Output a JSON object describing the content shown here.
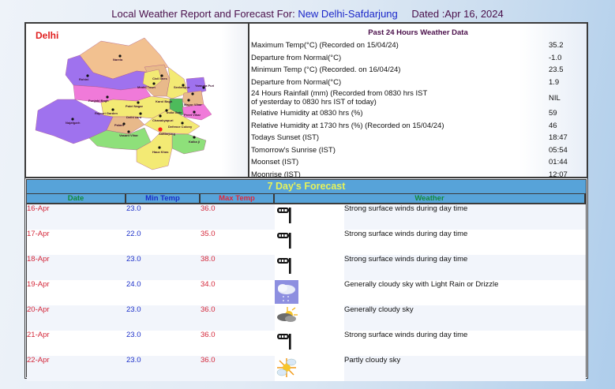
{
  "header": {
    "prefix": "Local Weather Report and Forecast For:",
    "location": "New Delhi-Safdarjung",
    "dated": "Dated :Apr 16, 2024"
  },
  "map": {
    "title": "Delhi",
    "localities": [
      "Narela",
      "Rohini",
      "Civil lines",
      "Model Town",
      "Seelampur",
      "Shahdara",
      "Yamuna Puri",
      "Punjabi Bagh",
      "Patel Nagar",
      "Karol Bagh",
      "India Gate",
      "Mayur Vihar",
      "Preet Vihar",
      "Rajouri Garden",
      "Delhi Cantt",
      "Chanakyapuri",
      "Najafgarh",
      "Palam",
      "Vasant Vihar",
      "Defence Colony",
      "Safdarjung",
      "Kalkaji",
      "Hauz Khas"
    ]
  },
  "past24": {
    "title": "Past 24 Hours Weather Data",
    "rows": [
      {
        "label": "Maximum Temp(°C) (Recorded on 15/04/24)",
        "value": "35.2"
      },
      {
        "label": "Departure from Normal(°C)",
        "value": "-1.0"
      },
      {
        "label": "Minimum Temp (°C) (Recorded. on 16/04/24)",
        "value": "23.5"
      },
      {
        "label": "Departure from Normal(°C)",
        "value": "1.9"
      },
      {
        "label": "24 Hours Rainfall (mm) (Recorded from 0830 hrs IST",
        "label2": "of yesterday to 0830 hrs IST of today)",
        "value": "NIL"
      },
      {
        "label": "Relative Humidity at 0830 hrs (%)",
        "value": "59"
      },
      {
        "label": "Relative Humidity at 1730 hrs (%) (Recorded on 15/04/24)",
        "value": "46"
      },
      {
        "label": "Todays Sunset (IST)",
        "value": "18:47"
      },
      {
        "label": "Tomorrow's Sunrise (IST)",
        "value": "05:54"
      },
      {
        "label": "Moonset (IST)",
        "value": "01:44"
      },
      {
        "label": "Moonrise (IST)",
        "value": "12:07"
      }
    ]
  },
  "forecast": {
    "title": "7 Day's Forecast",
    "headers": {
      "date": "Date",
      "min": "Min Temp",
      "max": "Max Temp",
      "weather": "Weather"
    },
    "rows": [
      {
        "date": "16-Apr",
        "min": "23.0",
        "max": "36.0",
        "icon": "windsock-icon",
        "weather": "Strong surface winds during day time"
      },
      {
        "date": "17-Apr",
        "min": "22.0",
        "max": "35.0",
        "icon": "windsock-icon",
        "weather": "Strong surface winds during day time"
      },
      {
        "date": "18-Apr",
        "min": "23.0",
        "max": "38.0",
        "icon": "windsock-icon",
        "weather": "Strong surface winds during day time"
      },
      {
        "date": "19-Apr",
        "min": "24.0",
        "max": "34.0",
        "icon": "rain-cloud-icon",
        "weather": "Generally cloudy sky with Light Rain or Drizzle"
      },
      {
        "date": "20-Apr",
        "min": "23.0",
        "max": "36.0",
        "icon": "cloudy-sun-icon",
        "weather": "Generally cloudy sky"
      },
      {
        "date": "21-Apr",
        "min": "23.0",
        "max": "36.0",
        "icon": "windsock-icon",
        "weather": "Strong surface winds during day time"
      },
      {
        "date": "22-Apr",
        "min": "23.0",
        "max": "36.0",
        "icon": "partly-cloudy-icon",
        "weather": "Partly cloudy sky"
      }
    ]
  }
}
